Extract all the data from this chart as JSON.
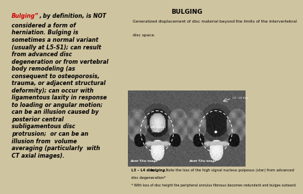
{
  "bg_color": "#cfc4a0",
  "right_panel_bg": "#e8e0cc",
  "title": "BULGING",
  "subtitle_line1": "Generalized displacement of disc material beyond the limits of the intervertebral",
  "subtitle_line2": "disc space.",
  "label_left_img": "Axial T2w image",
  "label_right_img": "Axial T2w image*",
  "label_l3_body": "L3 vertebral\nbody",
  "label_l3_l4": "L3 - L4 disc",
  "caption_line1_bold": "L3 - L4 disc ",
  "caption_line1_bolditalic": "bulging.",
  "caption_line1_rest": " Note the loss of the high signal nucleus pulposus (star) from advanced",
  "caption_line2": "disc degeneration*",
  "caption_line3": "* With loss of disc height the peripheral annulus fibrosus becomes redundant and bulges outward.",
  "left_red_text": "Bulging”",
  "left_black_text1": ", by definition, is NOT",
  "left_black_text2": "considered a form of\nherniation. Bulging is\nsometimes a normal variant\n(usually at L5-S1); can result\nfrom advanced disc\ndegeneration or from vertebral\nbody remodeling (as\nconsequent to osteoporosis,\ntrauma, or adjacent structural\ndeformity); can occur with\nligamentous laxity in response\nto loading or angular motion;\ncan be an illusion caused by\nposterior central\nsubligamentous disc\nprotrusion;  or can be an\nillusion from  volume\naveraging (particularly  with\nCT axial images).",
  "font_size_left": 5.8,
  "font_size_right_title": 6.5,
  "font_size_right_sub": 4.2,
  "font_size_caption": 3.8,
  "font_size_img_label": 3.5
}
